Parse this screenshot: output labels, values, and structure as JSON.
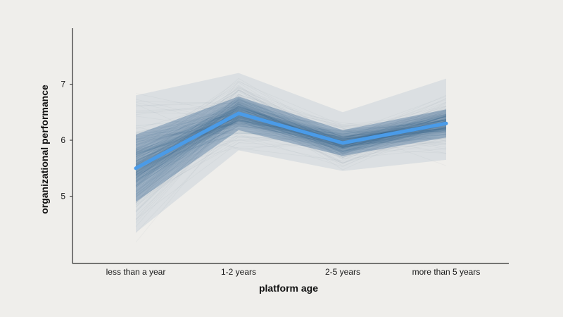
{
  "chart_data": {
    "type": "line",
    "title": "",
    "xlabel": "platform age",
    "ylabel": "organizational performance",
    "categories": [
      "less than a year",
      "1-2 years",
      "2-5 years",
      "more than 5 years"
    ],
    "yticks": [
      5,
      6,
      7
    ],
    "ylim": [
      3.8,
      8.0
    ],
    "grid": false,
    "legend": "none",
    "series": [
      {
        "values": [
          5.5,
          6.48,
          5.95,
          6.3
        ]
      }
    ],
    "uncertainty_band": {
      "description_of_mean": "posterior draws around mean",
      "inner_low": [
        4.9,
        6.18,
        5.72,
        6.05
      ],
      "inner_high": [
        6.1,
        6.78,
        6.18,
        6.55
      ],
      "outer_low": [
        4.35,
        5.82,
        5.45,
        5.65
      ],
      "outer_high": [
        6.8,
        7.2,
        6.5,
        7.1
      ]
    },
    "colors": {
      "mean_line": "#4a9be8",
      "band": "#2f5f8f",
      "faint_draws": "#9aa6b2"
    }
  }
}
